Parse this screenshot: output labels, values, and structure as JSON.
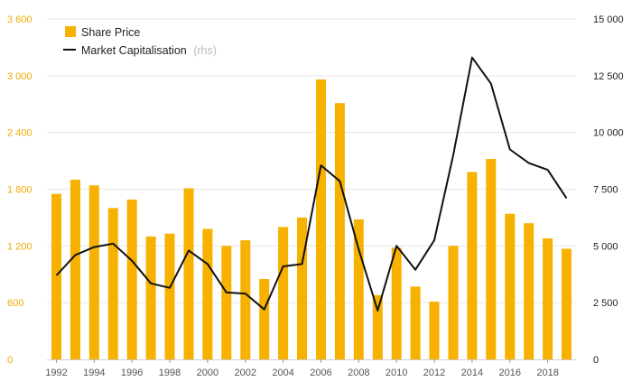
{
  "chart_data": {
    "type": "bar",
    "categories": [
      1992,
      1993,
      1994,
      1995,
      1996,
      1997,
      1998,
      1999,
      2000,
      2001,
      2002,
      2003,
      2004,
      2005,
      2006,
      2007,
      2008,
      2009,
      2010,
      2011,
      2012,
      2013,
      2014,
      2015,
      2016,
      2017,
      2018,
      2019
    ],
    "x_tick_labels": [
      "1992",
      "1994",
      "1996",
      "1998",
      "2000",
      "2002",
      "2004",
      "2006",
      "2008",
      "2010",
      "2012",
      "2014",
      "2016",
      "2018"
    ],
    "series": [
      {
        "name": "Share Price",
        "type": "bar",
        "axis": "left",
        "color": "#f7b100",
        "values": [
          1750,
          1900,
          1840,
          1600,
          1690,
          1300,
          1330,
          1810,
          1380,
          1200,
          1260,
          850,
          1400,
          1500,
          2960,
          2710,
          1480,
          680,
          1180,
          770,
          610,
          1200,
          1980,
          2120,
          1540,
          1440,
          1280,
          1170
        ]
      },
      {
        "name": "Market Capitalisation",
        "legend_note": "(rhs)",
        "type": "line",
        "axis": "right",
        "color": "#111111",
        "values": [
          3700,
          4600,
          4950,
          5100,
          4350,
          3350,
          3150,
          4800,
          4200,
          2950,
          2900,
          2200,
          4100,
          4200,
          8550,
          7850,
          4850,
          2150,
          5000,
          3950,
          5250,
          9000,
          13300,
          12150,
          9250,
          8650,
          8350,
          7100
        ]
      }
    ],
    "y_left": {
      "ylim": [
        0,
        3600
      ],
      "ticks": [
        "0",
        "600",
        "1 200",
        "1 800",
        "2 400",
        "3 000",
        "3 600"
      ],
      "tick_color": "#f2a900"
    },
    "y_right": {
      "ylim": [
        0,
        15000
      ],
      "ticks": [
        "0",
        "2 500",
        "5 000",
        "7 500",
        "10 000",
        "12 500",
        "15 000"
      ]
    },
    "grid": "horizontal",
    "legend_position": "top-left"
  }
}
